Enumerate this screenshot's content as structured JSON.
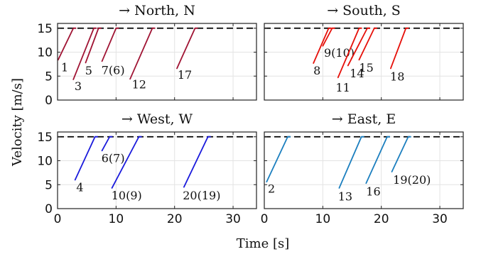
{
  "chart_data": {
    "type": "line",
    "xlabel": "Time [s]",
    "ylabel": "Velocity [m/s]",
    "xlim": [
      0,
      34
    ],
    "ylim": [
      0,
      16
    ],
    "xticks": [
      "0",
      "10",
      "20",
      "30"
    ],
    "yticks": [
      "0",
      "5",
      "10",
      "15"
    ],
    "grid": true,
    "reference_line": {
      "y": 15,
      "style": "dashed",
      "color": "#000000"
    },
    "panels": [
      {
        "title": "→ North, N",
        "color": "#a01434",
        "segments": [
          {
            "label": "1",
            "x": [
              0.1,
              2.7
            ],
            "y": [
              8.4,
              15
            ],
            "label_at": [
              0.6,
              6.9
            ]
          },
          {
            "label": "3",
            "x": [
              2.7,
              6.2
            ],
            "y": [
              4.3,
              15
            ],
            "label_at": [
              2.9,
              3.0
            ]
          },
          {
            "label": "5",
            "x": [
              4.8,
              7.0
            ],
            "y": [
              7.8,
              15
            ],
            "label_at": [
              4.7,
              6.2
            ]
          },
          {
            "label": "7(6)",
            "x": [
              7.6,
              10.0
            ],
            "y": [
              8.1,
              15
            ],
            "label_at": [
              7.5,
              6.3
            ]
          },
          {
            "label": "12",
            "x": [
              12.4,
              16.2
            ],
            "y": [
              4.4,
              15
            ],
            "label_at": [
              12.7,
              3.3
            ]
          },
          {
            "label": "17",
            "x": [
              20.4,
              23.5
            ],
            "y": [
              6.6,
              15
            ],
            "label_at": [
              20.5,
              5.3
            ]
          }
        ]
      },
      {
        "title": "→ South, S",
        "color": "#e6100a",
        "segments": [
          {
            "label": "8",
            "x": [
              8.4,
              11.0
            ],
            "y": [
              7.7,
              15
            ],
            "label_at": [
              8.4,
              6.2
            ]
          },
          {
            "label": "9(10)",
            "x": [
              10.0,
              11.6
            ],
            "y": [
              11.3,
              15
            ],
            "label_at": [
              10.2,
              9.9
            ]
          },
          {
            "label": "11",
            "x": [
              12.6,
              16.2
            ],
            "y": [
              4.7,
              15
            ],
            "label_at": [
              12.2,
              2.7
            ]
          },
          {
            "label": "14",
            "x": [
              14.3,
              17.6
            ],
            "y": [
              7.2,
              15
            ],
            "label_at": [
              14.6,
              5.6
            ]
          },
          {
            "label": "15",
            "x": [
              16.2,
              18.8
            ],
            "y": [
              8.4,
              15
            ],
            "label_at": [
              16.2,
              6.8
            ]
          },
          {
            "label": "18",
            "x": [
              21.6,
              24.2
            ],
            "y": [
              6.6,
              15
            ],
            "label_at": [
              21.5,
              5.0
            ]
          }
        ]
      },
      {
        "title": "→ West, W",
        "color": "#1a1adc",
        "segments": [
          {
            "label": "4",
            "x": [
              3.0,
              6.4
            ],
            "y": [
              6.0,
              15
            ],
            "label_at": [
              3.2,
              4.5
            ]
          },
          {
            "label": "6(7)",
            "x": [
              7.6,
              8.9
            ],
            "y": [
              12.1,
              15
            ],
            "label_at": [
              7.5,
              10.6
            ]
          },
          {
            "label": "10(9)",
            "x": [
              9.3,
              13.9
            ],
            "y": [
              4.3,
              15
            ],
            "label_at": [
              9.2,
              2.8
            ]
          },
          {
            "label": "20(19)",
            "x": [
              21.6,
              25.7
            ],
            "y": [
              4.5,
              15
            ],
            "label_at": [
              21.4,
              2.8
            ]
          }
        ]
      },
      {
        "title": "→ East, E",
        "color": "#1c7fbf",
        "segments": [
          {
            "label": "2",
            "x": [
              0.4,
              4.0
            ],
            "y": [
              5.6,
              15
            ],
            "label_at": [
              0.6,
              4.2
            ]
          },
          {
            "label": "13",
            "x": [
              12.8,
              16.6
            ],
            "y": [
              4.3,
              15
            ],
            "label_at": [
              12.6,
              2.6
            ]
          },
          {
            "label": "16",
            "x": [
              17.4,
              21.0
            ],
            "y": [
              5.3,
              15
            ],
            "label_at": [
              17.4,
              3.6
            ]
          },
          {
            "label": "19(20)",
            "x": [
              21.8,
              24.6
            ],
            "y": [
              7.7,
              15
            ],
            "label_at": [
              22.0,
              6.1
            ]
          }
        ]
      }
    ]
  }
}
